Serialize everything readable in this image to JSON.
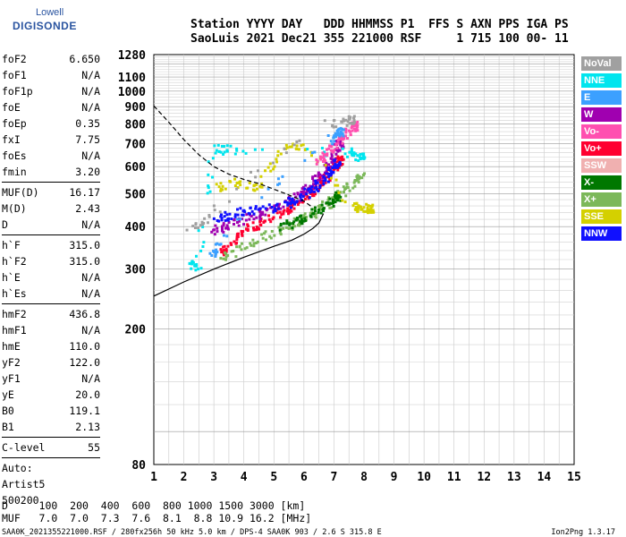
{
  "logo": {
    "line1": "Lowell",
    "line2": "DIGISONDE"
  },
  "header": {
    "line1": "Station YYYY DAY   DDD HHMMSS P1  FFS S AXN PPS IGA PS",
    "line2": "SaoLuis 2021 Dec21 355 221000 RSF     1 715 100 00- 11"
  },
  "params_groups": [
    [
      {
        "key": "foF2",
        "value": "6.650"
      },
      {
        "key": "foF1",
        "value": "N/A"
      },
      {
        "key": "foF1p",
        "value": "N/A"
      },
      {
        "key": "foE",
        "value": "N/A"
      },
      {
        "key": "foEp",
        "value": "0.35"
      },
      {
        "key": "fxI",
        "value": "7.75"
      },
      {
        "key": "foEs",
        "value": "N/A"
      },
      {
        "key": "fmin",
        "value": "3.20"
      }
    ],
    [
      {
        "key": "MUF(D)",
        "value": "16.17"
      },
      {
        "key": "M(D)",
        "value": "2.43"
      },
      {
        "key": "D",
        "value": "N/A"
      }
    ],
    [
      {
        "key": "h`F",
        "value": "315.0"
      },
      {
        "key": "h`F2",
        "value": "315.0"
      },
      {
        "key": "h`E",
        "value": "N/A"
      },
      {
        "key": "h`Es",
        "value": "N/A"
      }
    ],
    [
      {
        "key": "hmF2",
        "value": "436.8"
      },
      {
        "key": "hmF1",
        "value": "N/A"
      },
      {
        "key": "hmE",
        "value": "110.0"
      },
      {
        "key": "yF2",
        "value": "122.0"
      },
      {
        "key": "yF1",
        "value": "N/A"
      },
      {
        "key": "yE",
        "value": "20.0"
      },
      {
        "key": "B0",
        "value": "119.1"
      },
      {
        "key": "B1",
        "value": "2.13"
      }
    ],
    [
      {
        "key": "C-level",
        "value": "55"
      }
    ]
  ],
  "auto": {
    "line1": "Auto:",
    "line2": "Artist5",
    "line3": "500200"
  },
  "bottom": {
    "line1": "D     100  200  400  600  800 1000 1500 3000 [km]",
    "line2": "MUF   7.0  7.0  7.3  7.6  8.1  8.8 10.9 16.2 [MHz]"
  },
  "footer": {
    "left": "SAA0K_2021355221000.RSF / 280fx256h 50 kHz 5.0 km / DPS-4 SAA0K 903 / 2.6 S 315.8 E",
    "right": "Ion2Png 1.3.17"
  },
  "legend": [
    {
      "label": "NoVal",
      "color": "#a0a0a0"
    },
    {
      "label": "NNE",
      "color": "#00e5ee"
    },
    {
      "label": "E",
      "color": "#3ca0ff"
    },
    {
      "label": "W",
      "color": "#a000b0"
    },
    {
      "label": "Vo-",
      "color": "#ff50b0"
    },
    {
      "label": "Vo+",
      "color": "#ff0030"
    },
    {
      "label": "SSW",
      "color": "#f0b0b0"
    },
    {
      "label": "X-",
      "color": "#007800"
    },
    {
      "label": "X+",
      "color": "#7cb85a"
    },
    {
      "label": "SSE",
      "color": "#d4d000"
    },
    {
      "label": "NNW",
      "color": "#1010ff"
    }
  ],
  "chart_data": {
    "type": "scatter",
    "xlabel": "",
    "ylabel": "",
    "x_ticks": [
      "1",
      "2",
      "3",
      "4",
      "5",
      "6",
      "7",
      "8",
      "9",
      "10",
      "11",
      "12",
      "13",
      "14",
      "15"
    ],
    "y_ticks": [
      "80",
      "200",
      "300",
      "400",
      "500",
      "600",
      "700",
      "800",
      "900",
      "1000",
      "1100",
      "1280"
    ],
    "xlim": [
      1,
      15
    ],
    "y_scale": "log",
    "ylim": [
      80,
      1280
    ],
    "grid": true,
    "legend_position": "right",
    "series": [
      {
        "name": "Vo+",
        "color": "#ff0030",
        "points": [
          [
            3.2,
            330
          ],
          [
            3.6,
            360
          ],
          [
            4.0,
            385
          ],
          [
            4.5,
            405
          ],
          [
            5.0,
            425
          ],
          [
            5.5,
            450
          ],
          [
            6.0,
            480
          ],
          [
            6.3,
            505
          ],
          [
            6.6,
            540
          ],
          [
            6.9,
            580
          ],
          [
            7.2,
            625
          ]
        ]
      },
      {
        "name": "W",
        "color": "#a000b0",
        "points": [
          [
            3.0,
            390
          ],
          [
            3.4,
            400
          ],
          [
            4.0,
            420
          ],
          [
            4.6,
            440
          ],
          [
            5.2,
            460
          ],
          [
            5.8,
            490
          ],
          [
            6.2,
            520
          ],
          [
            6.5,
            560
          ],
          [
            6.8,
            600
          ],
          [
            7.0,
            640
          ],
          [
            7.2,
            700
          ]
        ]
      },
      {
        "name": "NNW",
        "color": "#1010ff",
        "points": [
          [
            3.0,
            420
          ],
          [
            3.5,
            430
          ],
          [
            4.2,
            445
          ],
          [
            5.0,
            455
          ],
          [
            5.6,
            470
          ],
          [
            6.0,
            495
          ],
          [
            6.4,
            525
          ],
          [
            6.8,
            560
          ],
          [
            7.1,
            610
          ]
        ]
      },
      {
        "name": "X+",
        "color": "#7cb85a",
        "points": [
          [
            3.3,
            320
          ],
          [
            4.0,
            350
          ],
          [
            4.8,
            375
          ],
          [
            5.5,
            400
          ],
          [
            6.1,
            425
          ],
          [
            6.6,
            455
          ],
          [
            7.0,
            480
          ],
          [
            7.5,
            520
          ],
          [
            7.9,
            560
          ]
        ]
      },
      {
        "name": "X-",
        "color": "#007800",
        "points": [
          [
            5.2,
            395
          ],
          [
            5.8,
            415
          ],
          [
            6.3,
            435
          ],
          [
            6.8,
            460
          ],
          [
            7.1,
            490
          ]
        ]
      },
      {
        "name": "SSE",
        "color": "#d4d000",
        "points": [
          [
            3.1,
            520
          ],
          [
            3.8,
            540
          ],
          [
            4.5,
            520
          ],
          [
            5.2,
            670
          ],
          [
            6.0,
            690
          ],
          [
            7.6,
            455
          ],
          [
            7.9,
            455
          ],
          [
            8.2,
            450
          ]
        ]
      },
      {
        "name": "NNE",
        "color": "#00e5ee",
        "points": [
          [
            2.1,
            310
          ],
          [
            2.5,
            305
          ],
          [
            3.0,
            680
          ],
          [
            3.5,
            670
          ],
          [
            7.5,
            660
          ],
          [
            7.9,
            640
          ]
        ]
      },
      {
        "name": "Vo-",
        "color": "#ff50b0",
        "points": [
          [
            6.5,
            620
          ],
          [
            6.8,
            660
          ],
          [
            7.1,
            700
          ],
          [
            7.4,
            740
          ],
          [
            7.7,
            790
          ]
        ]
      },
      {
        "name": "E",
        "color": "#3ca0ff",
        "points": [
          [
            2.9,
            330
          ],
          [
            3.2,
            350
          ],
          [
            6.9,
            720
          ],
          [
            7.2,
            760
          ]
        ]
      },
      {
        "name": "NoVal",
        "color": "#a0a0a0",
        "points": [
          [
            2.2,
            400
          ],
          [
            2.8,
            420
          ],
          [
            6.8,
            800
          ],
          [
            7.6,
            820
          ]
        ]
      }
    ],
    "profile_curve": [
      [
        1.0,
        250
      ],
      [
        2.0,
        275
      ],
      [
        3.0,
        300
      ],
      [
        4.0,
        325
      ],
      [
        5.0,
        350
      ],
      [
        5.6,
        365
      ],
      [
        6.0,
        380
      ],
      [
        6.3,
        395
      ],
      [
        6.5,
        410
      ],
      [
        6.65,
        436.8
      ]
    ],
    "muf_curve": [
      [
        1.0,
        905
      ],
      [
        1.5,
        810
      ],
      [
        2.0,
        720
      ],
      [
        2.5,
        650
      ],
      [
        3.0,
        600
      ],
      [
        3.5,
        570
      ],
      [
        4.0,
        550
      ],
      [
        4.5,
        535
      ],
      [
        5.0,
        515
      ],
      [
        5.5,
        495
      ],
      [
        6.0,
        475
      ],
      [
        6.3,
        455
      ]
    ]
  }
}
